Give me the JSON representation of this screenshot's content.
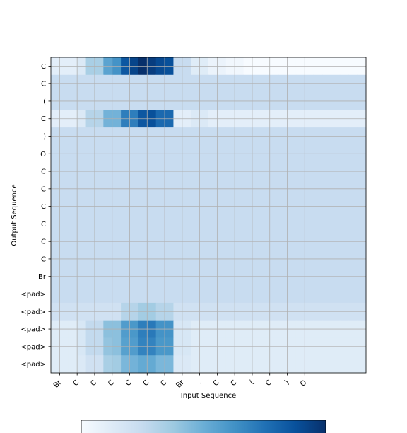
{
  "chart_data": {
    "type": "heatmap",
    "title": "",
    "xlabel": "Input Sequence",
    "ylabel": "Output Sequence",
    "x_labels": [
      "Br",
      "C",
      "C",
      "C",
      "C",
      "C",
      "C",
      "Br",
      ".",
      "C",
      "C",
      "(",
      "C",
      ")",
      "O"
    ],
    "x_positions": [
      0,
      1,
      2,
      3,
      4,
      5,
      6,
      7,
      8,
      9,
      10,
      11,
      12,
      13,
      14
    ],
    "x_range": [
      0,
      18
    ],
    "y_labels": [
      "C",
      "C",
      "(",
      "C",
      ")",
      "O",
      "C",
      "C",
      "C",
      "C",
      "C",
      "C",
      "Br",
      "<pad>",
      "<pad>",
      "<pad>",
      "<pad>",
      "<pad>"
    ],
    "grid": true,
    "colormap": "Blues",
    "colorbar": true,
    "color_stops": [
      "#f7fbff",
      "#deebf7",
      "#c6dbef",
      "#9ecae1",
      "#6baed6",
      "#4292c6",
      "#2171b5",
      "#08519c",
      "#08306b"
    ],
    "matrix": [
      [
        0.1,
        0.1,
        0.1,
        0.14,
        0.34,
        0.34,
        0.55,
        0.62,
        0.85,
        0.92,
        1.0,
        0.95,
        0.9,
        0.88,
        0.24,
        0.24,
        0.12,
        0.12,
        0.06,
        0.06,
        0.03,
        0.03,
        0.0,
        0.0,
        0.0,
        0.0,
        0.0,
        0.0,
        0.0,
        0.0,
        0.0,
        0.0,
        0.0,
        0.0,
        0.0,
        0.0
      ],
      [
        0.24,
        0.24,
        0.24,
        0.24,
        0.24,
        0.24,
        0.24,
        0.24,
        0.24,
        0.24,
        0.24,
        0.24,
        0.24,
        0.24,
        0.24,
        0.24,
        0.24,
        0.24,
        0.24,
        0.24,
        0.24,
        0.24,
        0.24,
        0.24,
        0.24,
        0.24,
        0.24,
        0.24,
        0.24,
        0.24,
        0.24,
        0.24,
        0.24,
        0.24,
        0.24,
        0.24
      ],
      [
        0.24,
        0.24,
        0.24,
        0.24,
        0.24,
        0.24,
        0.24,
        0.24,
        0.24,
        0.24,
        0.24,
        0.24,
        0.24,
        0.24,
        0.24,
        0.24,
        0.24,
        0.24,
        0.24,
        0.24,
        0.24,
        0.24,
        0.24,
        0.24,
        0.24,
        0.24,
        0.24,
        0.24,
        0.24,
        0.24,
        0.24,
        0.24,
        0.24,
        0.24,
        0.24,
        0.24
      ],
      [
        0.1,
        0.1,
        0.1,
        0.14,
        0.3,
        0.3,
        0.48,
        0.48,
        0.7,
        0.7,
        0.85,
        0.88,
        0.78,
        0.78,
        0.1,
        0.1,
        0.14,
        0.14,
        0.1,
        0.1,
        0.1,
        0.1,
        0.1,
        0.1,
        0.1,
        0.1,
        0.1,
        0.1,
        0.1,
        0.1,
        0.1,
        0.1,
        0.1,
        0.1,
        0.1,
        0.1
      ],
      [
        0.24,
        0.24,
        0.24,
        0.24,
        0.24,
        0.24,
        0.24,
        0.24,
        0.24,
        0.24,
        0.24,
        0.24,
        0.24,
        0.24,
        0.24,
        0.24,
        0.24,
        0.24,
        0.24,
        0.24,
        0.24,
        0.24,
        0.24,
        0.24,
        0.24,
        0.24,
        0.24,
        0.24,
        0.24,
        0.24,
        0.24,
        0.24,
        0.24,
        0.24,
        0.24,
        0.24
      ],
      [
        0.24,
        0.24,
        0.24,
        0.24,
        0.24,
        0.24,
        0.24,
        0.24,
        0.24,
        0.24,
        0.24,
        0.24,
        0.24,
        0.24,
        0.24,
        0.24,
        0.24,
        0.24,
        0.24,
        0.24,
        0.24,
        0.24,
        0.24,
        0.24,
        0.24,
        0.24,
        0.24,
        0.24,
        0.24,
        0.24,
        0.24,
        0.24,
        0.24,
        0.24,
        0.24,
        0.24
      ],
      [
        0.24,
        0.24,
        0.24,
        0.24,
        0.24,
        0.24,
        0.24,
        0.24,
        0.24,
        0.24,
        0.24,
        0.24,
        0.24,
        0.24,
        0.24,
        0.24,
        0.24,
        0.24,
        0.24,
        0.24,
        0.24,
        0.24,
        0.24,
        0.24,
        0.24,
        0.24,
        0.24,
        0.24,
        0.24,
        0.24,
        0.24,
        0.24,
        0.24,
        0.24,
        0.24,
        0.24
      ],
      [
        0.24,
        0.24,
        0.24,
        0.24,
        0.24,
        0.24,
        0.24,
        0.24,
        0.24,
        0.24,
        0.24,
        0.24,
        0.24,
        0.24,
        0.24,
        0.24,
        0.24,
        0.24,
        0.24,
        0.24,
        0.24,
        0.24,
        0.24,
        0.24,
        0.24,
        0.24,
        0.24,
        0.24,
        0.24,
        0.24,
        0.24,
        0.24,
        0.24,
        0.24,
        0.24,
        0.24
      ],
      [
        0.24,
        0.24,
        0.24,
        0.24,
        0.24,
        0.24,
        0.24,
        0.24,
        0.24,
        0.24,
        0.24,
        0.24,
        0.24,
        0.24,
        0.24,
        0.24,
        0.24,
        0.24,
        0.24,
        0.24,
        0.24,
        0.24,
        0.24,
        0.24,
        0.24,
        0.24,
        0.24,
        0.24,
        0.24,
        0.24,
        0.24,
        0.24,
        0.24,
        0.24,
        0.24,
        0.24
      ],
      [
        0.24,
        0.24,
        0.24,
        0.24,
        0.24,
        0.24,
        0.24,
        0.24,
        0.24,
        0.24,
        0.24,
        0.24,
        0.24,
        0.24,
        0.24,
        0.24,
        0.24,
        0.24,
        0.24,
        0.24,
        0.24,
        0.24,
        0.24,
        0.24,
        0.24,
        0.24,
        0.24,
        0.24,
        0.24,
        0.24,
        0.24,
        0.24,
        0.24,
        0.24,
        0.24,
        0.24
      ],
      [
        0.24,
        0.24,
        0.24,
        0.24,
        0.24,
        0.24,
        0.24,
        0.24,
        0.24,
        0.24,
        0.24,
        0.24,
        0.24,
        0.24,
        0.24,
        0.24,
        0.24,
        0.24,
        0.24,
        0.24,
        0.24,
        0.24,
        0.24,
        0.24,
        0.24,
        0.24,
        0.24,
        0.24,
        0.24,
        0.24,
        0.24,
        0.24,
        0.24,
        0.24,
        0.24,
        0.24
      ],
      [
        0.24,
        0.24,
        0.24,
        0.24,
        0.24,
        0.24,
        0.24,
        0.24,
        0.24,
        0.24,
        0.24,
        0.24,
        0.24,
        0.24,
        0.24,
        0.24,
        0.24,
        0.24,
        0.24,
        0.24,
        0.24,
        0.24,
        0.24,
        0.24,
        0.24,
        0.24,
        0.24,
        0.24,
        0.24,
        0.24,
        0.24,
        0.24,
        0.24,
        0.24,
        0.24,
        0.24
      ],
      [
        0.24,
        0.24,
        0.24,
        0.24,
        0.24,
        0.24,
        0.24,
        0.24,
        0.24,
        0.24,
        0.24,
        0.24,
        0.24,
        0.24,
        0.24,
        0.24,
        0.24,
        0.24,
        0.24,
        0.24,
        0.24,
        0.24,
        0.24,
        0.24,
        0.24,
        0.24,
        0.24,
        0.24,
        0.24,
        0.24,
        0.24,
        0.24,
        0.24,
        0.24,
        0.24,
        0.24
      ],
      [
        0.24,
        0.24,
        0.24,
        0.24,
        0.24,
        0.24,
        0.24,
        0.24,
        0.24,
        0.24,
        0.24,
        0.24,
        0.24,
        0.24,
        0.24,
        0.24,
        0.24,
        0.24,
        0.24,
        0.24,
        0.24,
        0.24,
        0.24,
        0.24,
        0.24,
        0.24,
        0.24,
        0.24,
        0.24,
        0.24,
        0.24,
        0.24,
        0.24,
        0.24,
        0.24,
        0.24
      ],
      [
        0.2,
        0.2,
        0.2,
        0.2,
        0.2,
        0.2,
        0.2,
        0.2,
        0.3,
        0.3,
        0.36,
        0.36,
        0.3,
        0.3,
        0.2,
        0.2,
        0.2,
        0.2,
        0.2,
        0.2,
        0.2,
        0.2,
        0.2,
        0.2,
        0.2,
        0.2,
        0.2,
        0.2,
        0.2,
        0.2,
        0.2,
        0.2,
        0.2,
        0.2,
        0.2,
        0.2
      ],
      [
        0.12,
        0.12,
        0.12,
        0.16,
        0.26,
        0.26,
        0.42,
        0.42,
        0.58,
        0.6,
        0.7,
        0.72,
        0.62,
        0.62,
        0.16,
        0.16,
        0.12,
        0.12,
        0.12,
        0.12,
        0.12,
        0.12,
        0.12,
        0.12,
        0.12,
        0.12,
        0.12,
        0.12,
        0.12,
        0.12,
        0.12,
        0.12,
        0.12,
        0.12,
        0.12,
        0.12
      ],
      [
        0.12,
        0.12,
        0.12,
        0.16,
        0.26,
        0.26,
        0.4,
        0.42,
        0.56,
        0.58,
        0.68,
        0.68,
        0.6,
        0.6,
        0.16,
        0.16,
        0.12,
        0.12,
        0.12,
        0.12,
        0.12,
        0.12,
        0.12,
        0.12,
        0.12,
        0.12,
        0.12,
        0.12,
        0.12,
        0.12,
        0.12,
        0.12,
        0.12,
        0.12,
        0.12,
        0.12
      ],
      [
        0.12,
        0.12,
        0.12,
        0.14,
        0.2,
        0.2,
        0.34,
        0.36,
        0.46,
        0.48,
        0.52,
        0.52,
        0.46,
        0.46,
        0.14,
        0.14,
        0.12,
        0.12,
        0.12,
        0.12,
        0.12,
        0.12,
        0.12,
        0.12,
        0.12,
        0.12,
        0.12,
        0.12,
        0.12,
        0.12,
        0.12,
        0.12,
        0.12,
        0.12,
        0.12,
        0.12
      ]
    ]
  }
}
